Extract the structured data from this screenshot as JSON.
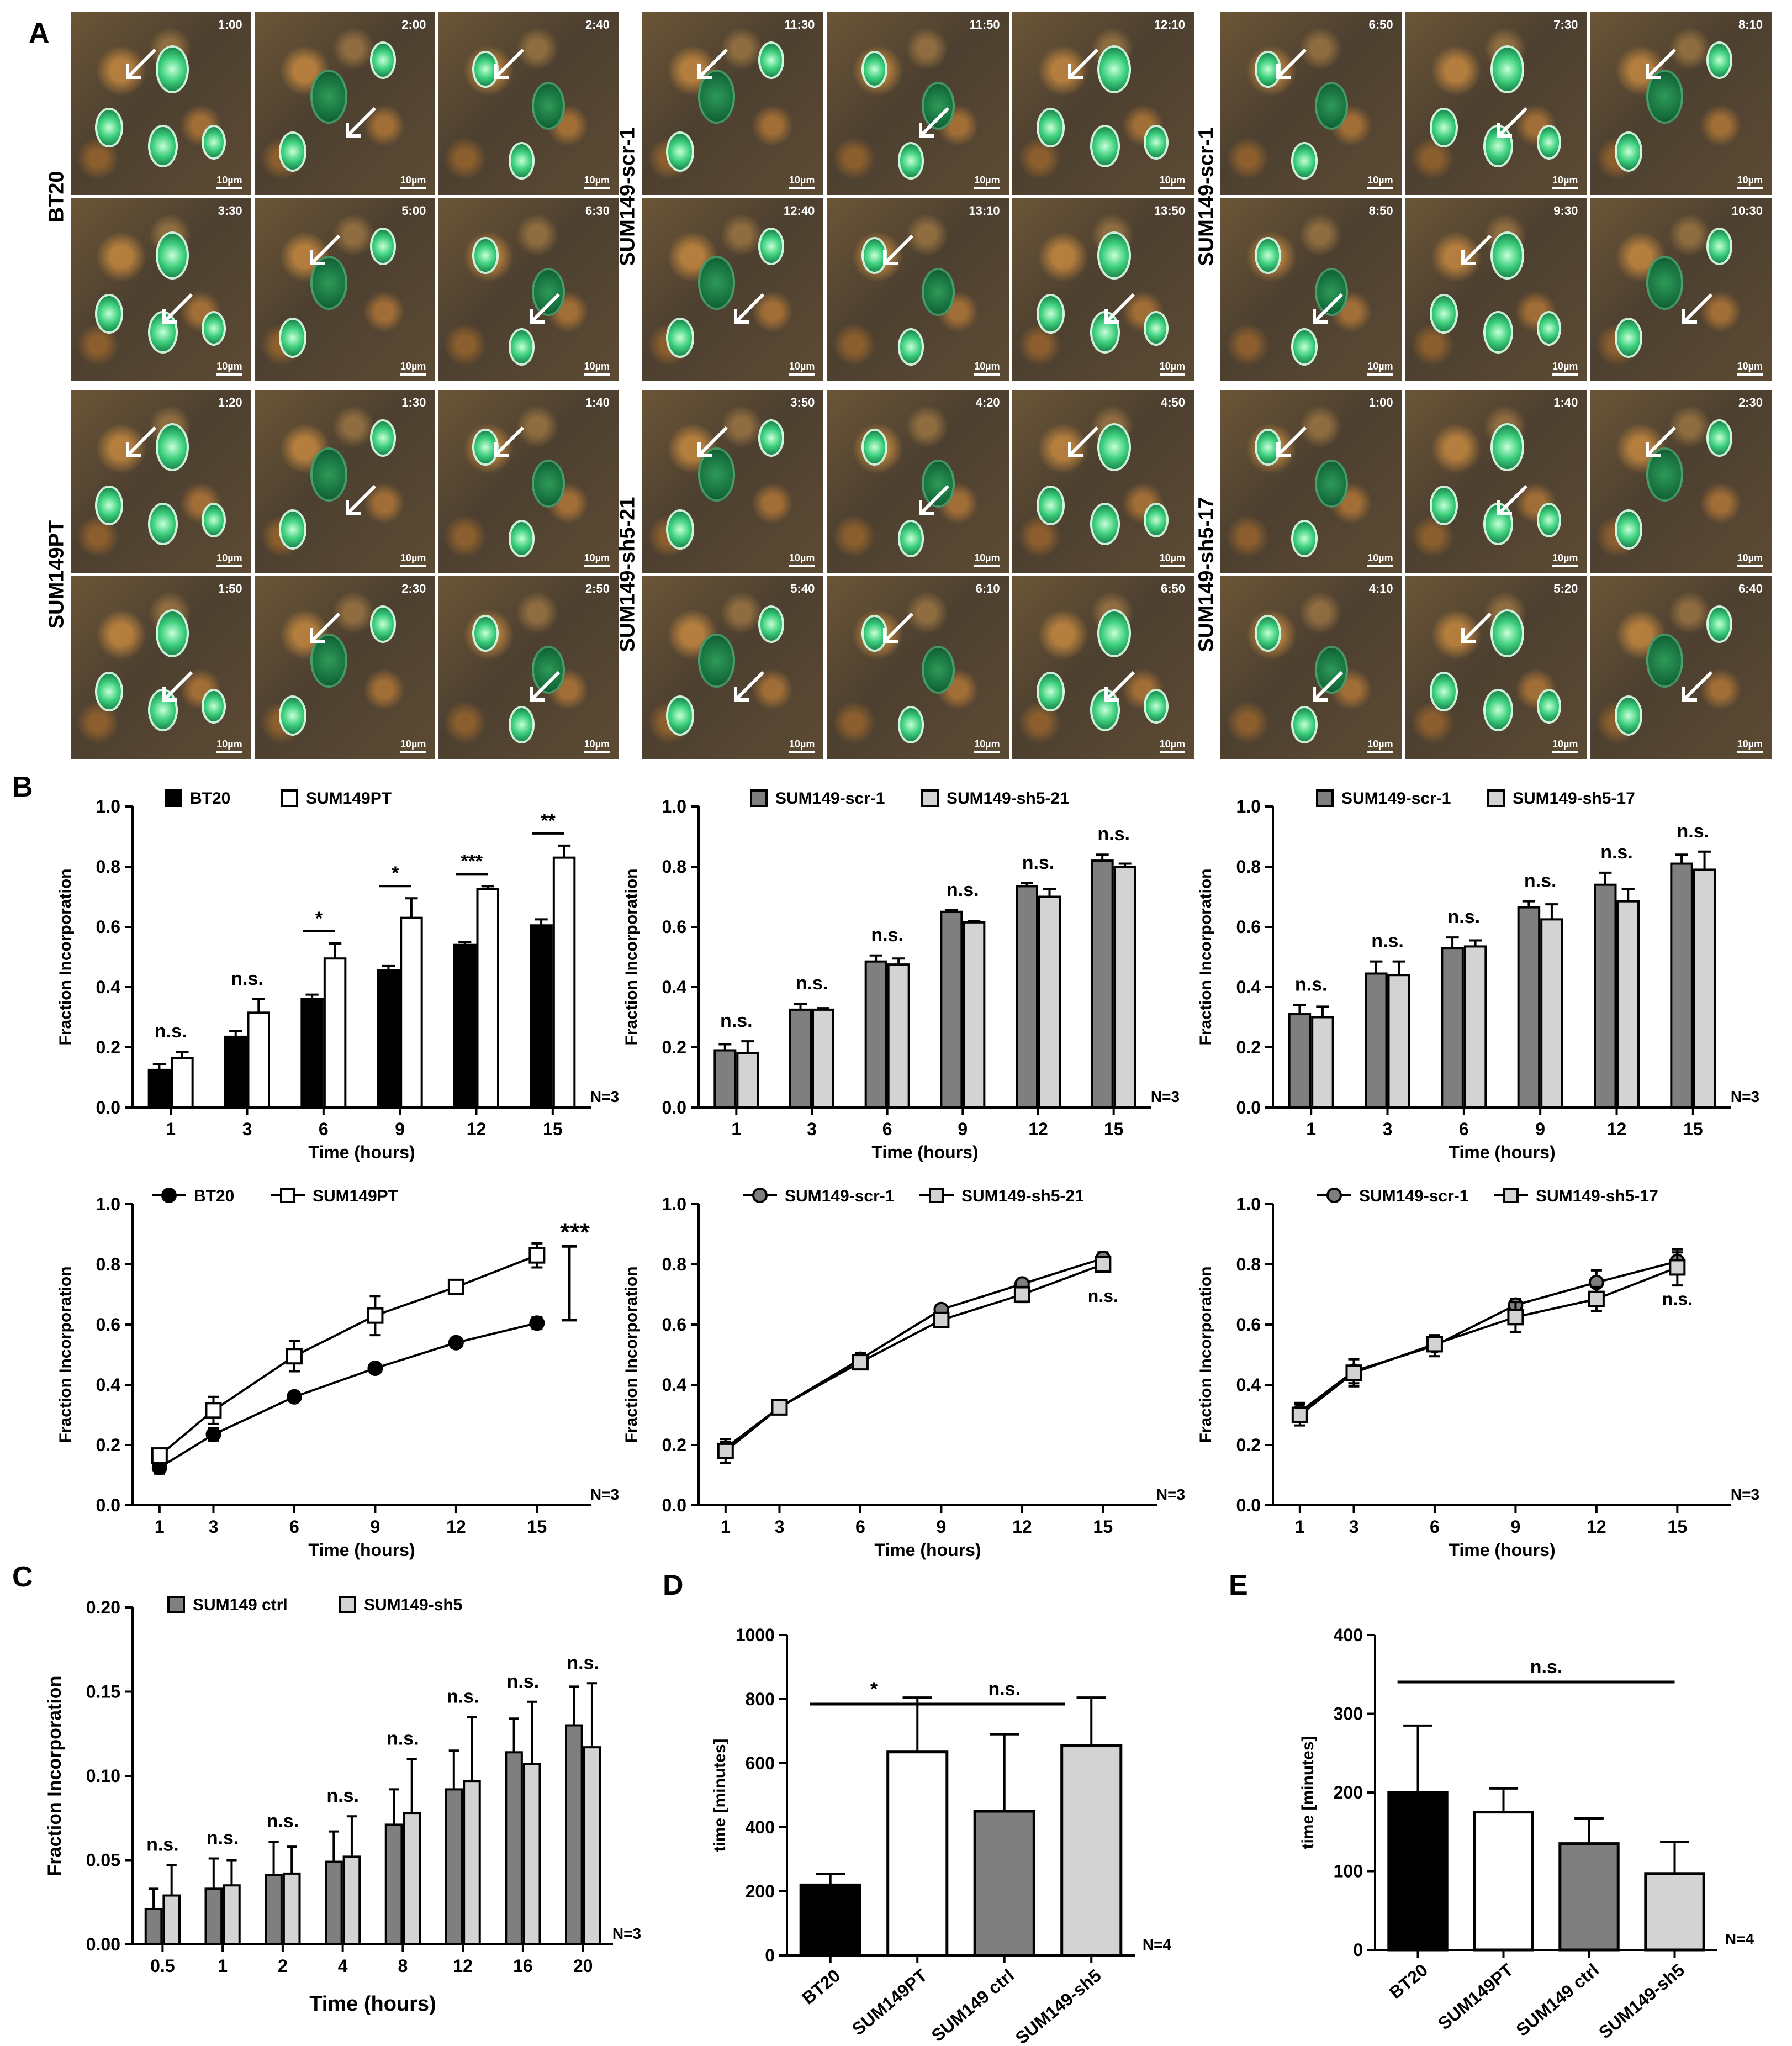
{
  "panel_labels": {
    "A": "A",
    "B": "B",
    "C": "C",
    "D": "D",
    "E": "E"
  },
  "scale_bar": "10µm",
  "microscopy": [
    {
      "label": "BT20",
      "times": [
        "1:00",
        "2:00",
        "2:40",
        "3:30",
        "5:00",
        "6:30"
      ]
    },
    {
      "label": "SUM149-scr-1",
      "times": [
        "11:30",
        "11:50",
        "12:10",
        "12:40",
        "13:10",
        "13:50"
      ]
    },
    {
      "label": "SUM149-scr-1",
      "times": [
        "6:50",
        "7:30",
        "8:10",
        "8:50",
        "9:30",
        "10:30"
      ]
    },
    {
      "label": "SUM149PT",
      "times": [
        "1:20",
        "1:30",
        "1:40",
        "1:50",
        "2:30",
        "2:50"
      ]
    },
    {
      "label": "SUM149-sh5-21",
      "times": [
        "3:50",
        "4:20",
        "4:50",
        "5:40",
        "6:10",
        "6:50"
      ]
    },
    {
      "label": "SUM149-sh5-17",
      "times": [
        "1:00",
        "1:40",
        "2:30",
        "4:10",
        "5:20",
        "6:40"
      ]
    }
  ],
  "chart_data": [
    {
      "id": "b1",
      "type": "bar",
      "categories": [
        "1",
        "3",
        "6",
        "9",
        "12",
        "15"
      ],
      "series": [
        {
          "name": "BT20",
          "values": [
            0.125,
            0.235,
            0.36,
            0.455,
            0.54,
            0.605
          ],
          "errors": [
            0.02,
            0.02,
            0.015,
            0.015,
            0.01,
            0.02
          ],
          "fill": "#000000"
        },
        {
          "name": "SUM149PT",
          "values": [
            0.165,
            0.315,
            0.495,
            0.63,
            0.725,
            0.83
          ],
          "errors": [
            0.02,
            0.045,
            0.05,
            0.065,
            0.01,
            0.04
          ],
          "fill": "#ffffff"
        }
      ],
      "sig": [
        "n.s.",
        "n.s.",
        "*",
        "*",
        "***",
        "**"
      ],
      "sig_line": [
        false,
        false,
        true,
        true,
        true,
        true
      ],
      "xlabel": "Time (hours)",
      "ylabel": "Fraction Incorporation",
      "ylim": [
        0,
        1.0
      ],
      "yticks": [
        "0.0",
        "0.2",
        "0.4",
        "0.6",
        "0.8",
        "1.0"
      ],
      "nlabel": "N=3"
    },
    {
      "id": "b2",
      "type": "bar",
      "categories": [
        "1",
        "3",
        "6",
        "9",
        "12",
        "15"
      ],
      "series": [
        {
          "name": "SUM149-scr-1",
          "values": [
            0.19,
            0.325,
            0.485,
            0.65,
            0.735,
            0.82
          ],
          "errors": [
            0.02,
            0.02,
            0.02,
            0.005,
            0.01,
            0.02
          ],
          "fill": "#7f7f7f"
        },
        {
          "name": "SUM149-sh5-21",
          "values": [
            0.18,
            0.325,
            0.475,
            0.615,
            0.7,
            0.8
          ],
          "errors": [
            0.04,
            0.005,
            0.02,
            0.005,
            0.025,
            0.01
          ],
          "fill": "#d3d3d3"
        }
      ],
      "sig": [
        "n.s.",
        "n.s.",
        "n.s.",
        "n.s.",
        "n.s.",
        "n.s."
      ],
      "sig_line": [
        false,
        false,
        false,
        false,
        false,
        false
      ],
      "xlabel": "Time (hours)",
      "ylabel": "Fraction Incorporation",
      "ylim": [
        0,
        1.0
      ],
      "yticks": [
        "0.0",
        "0.2",
        "0.4",
        "0.6",
        "0.8",
        "1.0"
      ],
      "nlabel": "N=3"
    },
    {
      "id": "b3",
      "type": "bar",
      "categories": [
        "1",
        "3",
        "6",
        "9",
        "12",
        "15"
      ],
      "series": [
        {
          "name": "SUM149-scr-1",
          "values": [
            0.31,
            0.445,
            0.53,
            0.665,
            0.74,
            0.81
          ],
          "errors": [
            0.03,
            0.04,
            0.035,
            0.02,
            0.04,
            0.03
          ],
          "fill": "#7f7f7f"
        },
        {
          "name": "SUM149-sh5-17",
          "values": [
            0.3,
            0.44,
            0.535,
            0.625,
            0.685,
            0.79
          ],
          "errors": [
            0.035,
            0.045,
            0.02,
            0.05,
            0.04,
            0.06
          ],
          "fill": "#d3d3d3"
        }
      ],
      "sig": [
        "n.s.",
        "n.s.",
        "n.s.",
        "n.s.",
        "n.s.",
        "n.s."
      ],
      "sig_line": [
        false,
        false,
        false,
        false,
        false,
        false
      ],
      "xlabel": "Time (hours)",
      "ylabel": "Fraction Incorporation",
      "ylim": [
        0,
        1.0
      ],
      "yticks": [
        "0.0",
        "0.2",
        "0.4",
        "0.6",
        "0.8",
        "1.0"
      ],
      "nlabel": "N=3"
    },
    {
      "id": "l1",
      "type": "line",
      "x": [
        "1",
        "3",
        "6",
        "9",
        "12",
        "15"
      ],
      "series": [
        {
          "name": "BT20",
          "values": [
            0.125,
            0.235,
            0.36,
            0.455,
            0.54,
            0.605
          ],
          "errors": [
            0.02,
            0.02,
            0.015,
            0.015,
            0.01,
            0.02
          ],
          "marker": "circle",
          "fill": "#000000"
        },
        {
          "name": "SUM149PT",
          "values": [
            0.165,
            0.315,
            0.495,
            0.63,
            0.725,
            0.83
          ],
          "errors": [
            0.02,
            0.045,
            0.05,
            0.065,
            0.01,
            0.04
          ],
          "marker": "square",
          "fill": "#ffffff"
        }
      ],
      "annotation": "***",
      "bracket": [
        0.615,
        0.86
      ],
      "xlabel": "Time (hours)",
      "ylabel": "Fraction Incorporation",
      "ylim": [
        0,
        1.0
      ],
      "yticks": [
        "0.0",
        "0.2",
        "0.4",
        "0.6",
        "0.8",
        "1.0"
      ],
      "nlabel": "N=3"
    },
    {
      "id": "l2",
      "type": "line",
      "x": [
        "1",
        "3",
        "6",
        "9",
        "12",
        "15"
      ],
      "series": [
        {
          "name": "SUM149-scr-1",
          "values": [
            0.19,
            0.325,
            0.485,
            0.65,
            0.735,
            0.82
          ],
          "errors": [
            0.02,
            0.02,
            0.02,
            0.005,
            0.01,
            0.02
          ],
          "marker": "circle",
          "fill": "#7f7f7f"
        },
        {
          "name": "SUM149-sh5-21",
          "values": [
            0.18,
            0.325,
            0.475,
            0.615,
            0.7,
            0.8
          ],
          "errors": [
            0.04,
            0.005,
            0.02,
            0.005,
            0.025,
            0.01
          ],
          "marker": "square",
          "fill": "#d3d3d3"
        }
      ],
      "annotation": "n.s.",
      "xlabel": "Time (hours)",
      "ylabel": "Fraction Incorporation",
      "ylim": [
        0,
        1.0
      ],
      "yticks": [
        "0.0",
        "0.2",
        "0.4",
        "0.6",
        "0.8",
        "1.0"
      ],
      "nlabel": "N=3"
    },
    {
      "id": "l3",
      "type": "line",
      "x": [
        "1",
        "3",
        "6",
        "9",
        "12",
        "15"
      ],
      "series": [
        {
          "name": "SUM149-scr-1",
          "values": [
            0.31,
            0.445,
            0.53,
            0.665,
            0.74,
            0.81
          ],
          "errors": [
            0.03,
            0.04,
            0.035,
            0.02,
            0.04,
            0.03
          ],
          "marker": "circle",
          "fill": "#7f7f7f"
        },
        {
          "name": "SUM149-sh5-17",
          "values": [
            0.3,
            0.44,
            0.535,
            0.625,
            0.685,
            0.79
          ],
          "errors": [
            0.035,
            0.045,
            0.02,
            0.05,
            0.04,
            0.06
          ],
          "marker": "square",
          "fill": "#d3d3d3"
        }
      ],
      "annotation": "n.s.",
      "xlabel": "Time (hours)",
      "ylabel": "Fraction Incorporation",
      "ylim": [
        0,
        1.0
      ],
      "yticks": [
        "0.0",
        "0.2",
        "0.4",
        "0.6",
        "0.8",
        "1.0"
      ],
      "nlabel": "N=3"
    },
    {
      "id": "c",
      "type": "bar",
      "categories": [
        "0.5",
        "1",
        "2",
        "4",
        "8",
        "12",
        "16",
        "20"
      ],
      "series": [
        {
          "name": "SUM149 ctrl",
          "values": [
            0.021,
            0.033,
            0.041,
            0.049,
            0.071,
            0.092,
            0.114,
            0.13
          ],
          "errors": [
            0.012,
            0.018,
            0.02,
            0.018,
            0.021,
            0.023,
            0.02,
            0.023
          ],
          "fill": "#7f7f7f"
        },
        {
          "name": "SUM149-sh5",
          "values": [
            0.029,
            0.035,
            0.042,
            0.052,
            0.078,
            0.097,
            0.107,
            0.117
          ],
          "errors": [
            0.018,
            0.015,
            0.016,
            0.024,
            0.032,
            0.038,
            0.037,
            0.038
          ],
          "fill": "#d3d3d3"
        }
      ],
      "sig": [
        "n.s.",
        "n.s.",
        "n.s.",
        "n.s.",
        "n.s.",
        "n.s.",
        "n.s.",
        "n.s."
      ],
      "xlabel": "Time (hours)",
      "ylabel": "Fraction Incorporation",
      "ylim": [
        0,
        0.2
      ],
      "yticks": [
        "0.00",
        "0.05",
        "0.10",
        "0.15",
        "0.20"
      ],
      "nlabel": "N=3"
    },
    {
      "id": "d",
      "type": "bar",
      "categories": [
        "BT20",
        "SUM149PT",
        "SUM149 ctrl",
        "SUM149-sh5"
      ],
      "values": [
        220,
        635,
        450,
        655
      ],
      "errors": [
        35,
        170,
        240,
        150
      ],
      "fills": [
        "#000000",
        "#ffffff",
        "#7f7f7f",
        "#d3d3d3"
      ],
      "sig": [
        {
          "from": 0,
          "to": 1,
          "label": "*"
        },
        {
          "from": 1,
          "to": 3,
          "label": "n.s."
        }
      ],
      "ylabel": "time [minutes]",
      "ylim": [
        0,
        1000
      ],
      "yticks": [
        "0",
        "200",
        "400",
        "600",
        "800",
        "1000"
      ],
      "nlabel": "N=4"
    },
    {
      "id": "e",
      "type": "bar",
      "categories": [
        "BT20",
        "SUM149PT",
        "SUM149 ctrl",
        "SUM149-sh5"
      ],
      "values": [
        200,
        175,
        135,
        97
      ],
      "errors": [
        85,
        30,
        32,
        40
      ],
      "fills": [
        "#000000",
        "#ffffff",
        "#7f7f7f",
        "#d3d3d3"
      ],
      "sig": [
        {
          "from": 0,
          "to": 3,
          "label": "n.s."
        }
      ],
      "ylabel": "time [minutes]",
      "ylim": [
        0,
        400
      ],
      "yticks": [
        "0",
        "100",
        "200",
        "300",
        "400"
      ],
      "nlabel": "N=4"
    }
  ]
}
